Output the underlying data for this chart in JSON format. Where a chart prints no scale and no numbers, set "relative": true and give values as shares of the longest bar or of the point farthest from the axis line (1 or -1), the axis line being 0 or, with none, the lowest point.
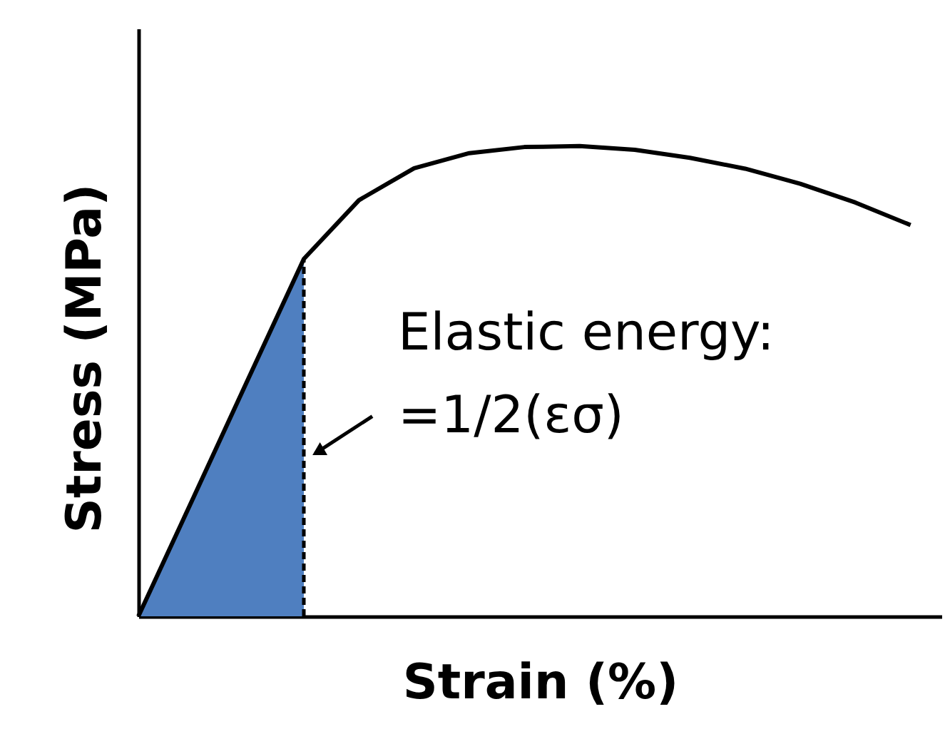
{
  "chart_data": {
    "type": "line",
    "relative": true,
    "xlabel": "Strain (%)",
    "ylabel": "Stress (MPa)",
    "categories": [
      null,
      null,
      null,
      null,
      null,
      null,
      null,
      null,
      null,
      null,
      null,
      null,
      null,
      null,
      null
    ],
    "series": [
      {
        "type": "area",
        "color": "#4f7fc0",
        "line_style": "dashed",
        "values": [
          0,
          0.253,
          0.507,
          0.76,
          null,
          null,
          null,
          null,
          null,
          null,
          null,
          null,
          null,
          null,
          null
        ]
      },
      {
        "color": "#000000",
        "values": [
          0,
          0.253,
          0.507,
          0.76,
          0.885,
          0.953,
          0.985,
          0.998,
          1.0,
          0.992,
          0.975,
          0.952,
          0.92,
          0.88,
          0.832
        ]
      }
    ],
    "annotations": [
      "Elastic energy:\n=1/2(εσ)"
    ]
  }
}
